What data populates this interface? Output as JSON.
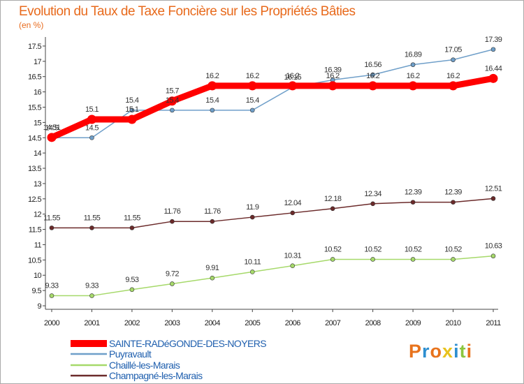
{
  "chart_data": {
    "type": "line",
    "title": "Evolution du Taux de Taxe Foncière sur les Propriétés Bâties",
    "subtitle": "(en %)",
    "xlabel": "",
    "ylabel": "",
    "x": [
      "2000",
      "2001",
      "2002",
      "2003",
      "2004",
      "2005",
      "2006",
      "2007",
      "2008",
      "2009",
      "2010",
      "2011"
    ],
    "ylim": [
      9,
      17.75
    ],
    "yticks": [
      "9",
      "9.5",
      "10",
      "10.5",
      "11",
      "11.5",
      "12",
      "12.5",
      "13",
      "13.5",
      "14",
      "14.5",
      "15",
      "15.5",
      "16",
      "16.5",
      "17",
      "17.5"
    ],
    "grid": false,
    "legend_position": "bottom-left",
    "series": [
      {
        "name": "SAINTE-RADéGONDE-DES-NOYERS",
        "color": "#ff0000",
        "values": [
          14.51,
          15.1,
          15.1,
          15.7,
          16.2,
          16.2,
          16.2,
          16.2,
          16.2,
          16.2,
          16.2,
          16.44
        ],
        "labels": [
          "14.51",
          "15.1",
          "15.1",
          "15.7",
          "16.2",
          "16.2",
          "16.2",
          "16.2",
          "16.2",
          "16.2",
          "16.2",
          "16.44"
        ]
      },
      {
        "name": "Puyravault",
        "color": "#6f9fc9",
        "values": [
          14.5,
          14.5,
          15.4,
          15.4,
          15.4,
          15.4,
          16.15,
          16.39,
          16.56,
          16.89,
          17.05,
          17.39
        ],
        "labels": [
          "14.5",
          "14.5",
          "15.4",
          "15.4",
          "15.4",
          "15.4",
          "16.15",
          "16.39",
          "16.56",
          "16.89",
          "17.05",
          "17.39"
        ]
      },
      {
        "name": "Chaillé-les-Marais",
        "color": "#a6d96a",
        "values": [
          9.33,
          9.33,
          9.53,
          9.72,
          9.91,
          10.11,
          10.31,
          10.52,
          10.52,
          10.52,
          10.52,
          10.63
        ],
        "labels": [
          "9.33",
          "9.33",
          "9.53",
          "9.72",
          "9.91",
          "10.11",
          "10.31",
          "10.52",
          "10.52",
          "10.52",
          "10.52",
          "10.63"
        ]
      },
      {
        "name": "Champagné-les-Marais",
        "color": "#6b2a2a",
        "values": [
          11.55,
          11.55,
          11.55,
          11.76,
          11.76,
          11.9,
          12.04,
          12.18,
          12.34,
          12.39,
          12.39,
          12.51
        ],
        "labels": [
          "11.55",
          "11.55",
          "11.55",
          "11.76",
          "11.76",
          "11.9",
          "12.04",
          "12.18",
          "12.34",
          "12.39",
          "12.39",
          "12.51"
        ]
      }
    ]
  },
  "logo": {
    "letters": [
      "P",
      "r",
      "o",
      "x",
      "i",
      "t",
      "i"
    ],
    "colors": [
      "#e8731c",
      "#2e8fd0",
      "#e8731c",
      "#e8c21c",
      "#2e8fd0",
      "#8cc63f",
      "#e8731c"
    ]
  }
}
